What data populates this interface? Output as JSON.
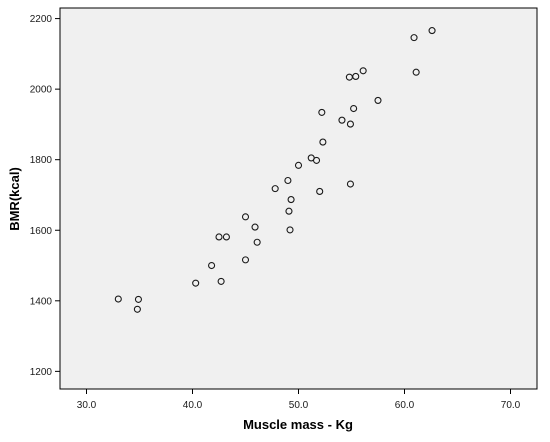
{
  "chart_data": {
    "type": "scatter",
    "title": "",
    "xlabel": "Muscle mass - Kg",
    "ylabel": "BMR(kcal)",
    "xlim": [
      27.5,
      72.5
    ],
    "ylim": [
      1150,
      2230
    ],
    "xticks": [
      30.0,
      40.0,
      50.0,
      60.0,
      70.0
    ],
    "xtick_labels": [
      "30.0",
      "40.0",
      "50.0",
      "60.0",
      "70.0"
    ],
    "yticks": [
      1200,
      1400,
      1600,
      1800,
      2000,
      2200
    ],
    "ytick_labels": [
      "1200",
      "1400",
      "1600",
      "1800",
      "2000",
      "2200"
    ],
    "grid": false,
    "background_color": "#f0f0f0",
    "marker": "open-circle",
    "points": [
      {
        "x": 33.0,
        "y": 1405
      },
      {
        "x": 34.9,
        "y": 1404
      },
      {
        "x": 34.8,
        "y": 1376
      },
      {
        "x": 40.3,
        "y": 1450
      },
      {
        "x": 41.8,
        "y": 1500
      },
      {
        "x": 42.7,
        "y": 1455
      },
      {
        "x": 42.5,
        "y": 1581
      },
      {
        "x": 43.2,
        "y": 1581
      },
      {
        "x": 45.0,
        "y": 1516
      },
      {
        "x": 45.0,
        "y": 1638
      },
      {
        "x": 45.9,
        "y": 1609
      },
      {
        "x": 46.1,
        "y": 1566
      },
      {
        "x": 47.8,
        "y": 1718
      },
      {
        "x": 49.0,
        "y": 1741
      },
      {
        "x": 49.1,
        "y": 1654
      },
      {
        "x": 49.3,
        "y": 1687
      },
      {
        "x": 49.2,
        "y": 1601
      },
      {
        "x": 50.0,
        "y": 1784
      },
      {
        "x": 51.2,
        "y": 1805
      },
      {
        "x": 51.7,
        "y": 1798
      },
      {
        "x": 52.0,
        "y": 1710
      },
      {
        "x": 52.3,
        "y": 1850
      },
      {
        "x": 52.2,
        "y": 1934
      },
      {
        "x": 54.1,
        "y": 1912
      },
      {
        "x": 54.9,
        "y": 1901
      },
      {
        "x": 54.9,
        "y": 1731
      },
      {
        "x": 55.2,
        "y": 1945
      },
      {
        "x": 54.8,
        "y": 2034
      },
      {
        "x": 55.4,
        "y": 2036
      },
      {
        "x": 56.1,
        "y": 2052
      },
      {
        "x": 57.5,
        "y": 1968
      },
      {
        "x": 60.9,
        "y": 2146
      },
      {
        "x": 61.1,
        "y": 2048
      },
      {
        "x": 62.6,
        "y": 2166
      }
    ]
  }
}
